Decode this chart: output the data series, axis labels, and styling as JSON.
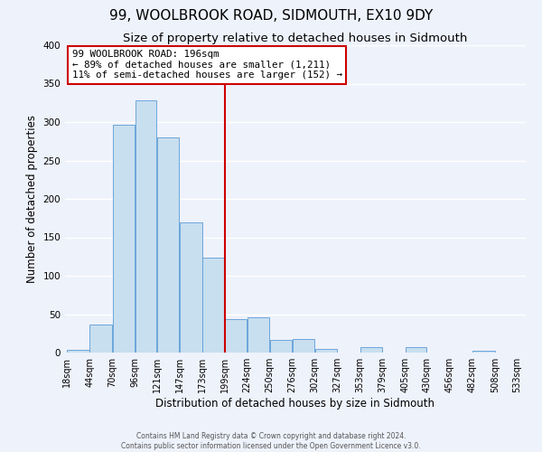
{
  "title": "99, WOOLBROOK ROAD, SIDMOUTH, EX10 9DY",
  "subtitle": "Size of property relative to detached houses in Sidmouth",
  "xlabel": "Distribution of detached houses by size in Sidmouth",
  "ylabel": "Number of detached properties",
  "bar_left_edges": [
    18,
    44,
    70,
    96,
    121,
    147,
    173,
    199,
    224,
    250,
    276,
    302,
    327,
    353,
    379,
    405,
    430,
    456,
    482,
    508
  ],
  "bar_widths": [
    26,
    26,
    26,
    25,
    26,
    26,
    26,
    25,
    26,
    26,
    26,
    25,
    26,
    26,
    26,
    25,
    26,
    26,
    26,
    25
  ],
  "bar_heights": [
    4,
    37,
    296,
    328,
    280,
    169,
    123,
    44,
    46,
    17,
    18,
    5,
    0,
    7,
    0,
    7,
    0,
    0,
    2,
    0
  ],
  "bar_color": "#c8dff0",
  "bar_edge_color": "#5b9bd5",
  "tick_labels": [
    "18sqm",
    "44sqm",
    "70sqm",
    "96sqm",
    "121sqm",
    "147sqm",
    "173sqm",
    "199sqm",
    "224sqm",
    "250sqm",
    "276sqm",
    "302sqm",
    "327sqm",
    "353sqm",
    "379sqm",
    "405sqm",
    "430sqm",
    "456sqm",
    "482sqm",
    "508sqm",
    "533sqm"
  ],
  "ylim": [
    0,
    400
  ],
  "yticks": [
    0,
    50,
    100,
    150,
    200,
    250,
    300,
    350,
    400
  ],
  "vline_x": 199,
  "vline_color": "#cc0000",
  "annotation_text": "99 WOOLBROOK ROAD: 196sqm\n← 89% of detached houses are smaller (1,211)\n11% of semi-detached houses are larger (152) →",
  "annotation_box_color": "#ffffff",
  "annotation_box_edge": "#cc0000",
  "footer_line1": "Contains HM Land Registry data © Crown copyright and database right 2024.",
  "footer_line2": "Contains public sector information licensed under the Open Government Licence v3.0.",
  "bg_color": "#eef2fb",
  "grid_color": "#ffffff",
  "title_fontsize": 11,
  "subtitle_fontsize": 9.5,
  "tick_fontsize": 7,
  "ylabel_fontsize": 8.5,
  "xlabel_fontsize": 8.5
}
